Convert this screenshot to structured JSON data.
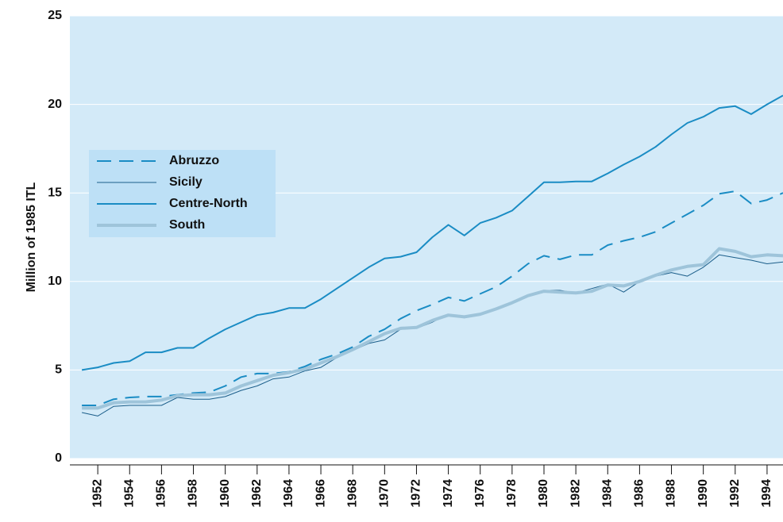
{
  "chart_data": {
    "type": "line",
    "y_label": "Million of 1985 ITL",
    "x": [
      1951,
      1952,
      1953,
      1954,
      1955,
      1956,
      1957,
      1958,
      1959,
      1960,
      1961,
      1962,
      1963,
      1964,
      1965,
      1966,
      1967,
      1968,
      1969,
      1970,
      1971,
      1972,
      1973,
      1974,
      1975,
      1976,
      1977,
      1978,
      1979,
      1980,
      1981,
      1982,
      1983,
      1984,
      1985,
      1986,
      1987,
      1988,
      1989,
      1990,
      1991,
      1992,
      1993,
      1994,
      1995
    ],
    "series": [
      {
        "name": "Abruzzo",
        "color": "#1a8cc4",
        "dash": true,
        "width": 2,
        "values": [
          3.0,
          3.0,
          3.35,
          3.45,
          3.5,
          3.5,
          3.6,
          3.7,
          3.75,
          4.1,
          4.6,
          4.8,
          4.8,
          4.9,
          5.2,
          5.6,
          5.9,
          6.3,
          6.9,
          7.3,
          7.9,
          8.35,
          8.7,
          9.1,
          8.9,
          9.3,
          9.7,
          10.3,
          11.0,
          11.45,
          11.25,
          11.5,
          11.5,
          12.05,
          12.3,
          12.5,
          12.8,
          13.3,
          13.8,
          14.3,
          14.95,
          15.1,
          14.4,
          14.6,
          15.0
        ]
      },
      {
        "name": "Sicily",
        "color": "#1b5e8a",
        "dash": false,
        "width": 1,
        "values": [
          2.6,
          2.4,
          2.95,
          3.0,
          3.0,
          3.0,
          3.45,
          3.35,
          3.35,
          3.5,
          3.85,
          4.1,
          4.5,
          4.6,
          4.95,
          5.15,
          5.7,
          6.1,
          6.5,
          6.7,
          7.3,
          7.35,
          7.7,
          8.15,
          7.95,
          8.1,
          8.4,
          8.8,
          9.2,
          9.5,
          9.5,
          9.35,
          9.6,
          9.85,
          9.4,
          10.0,
          10.3,
          10.5,
          10.3,
          10.8,
          11.5,
          11.35,
          11.2,
          11.0,
          11.1
        ]
      },
      {
        "name": "Centre-North",
        "color": "#1a8cc4",
        "dash": false,
        "width": 2,
        "values": [
          5.0,
          5.15,
          5.4,
          5.5,
          6.0,
          6.0,
          6.25,
          6.25,
          6.8,
          7.3,
          7.7,
          8.1,
          8.25,
          8.5,
          8.5,
          9.0,
          9.6,
          10.2,
          10.8,
          11.3,
          11.4,
          11.65,
          12.5,
          13.2,
          12.6,
          13.3,
          13.6,
          14.0,
          14.8,
          15.6,
          15.6,
          15.65,
          15.65,
          16.1,
          16.6,
          17.05,
          17.6,
          18.3,
          18.95,
          19.3,
          19.8,
          19.9,
          19.45,
          20.0,
          20.5
        ]
      },
      {
        "name": "South",
        "color": "#9ec4da",
        "dash": false,
        "width": 4,
        "values": [
          2.85,
          2.85,
          3.15,
          3.2,
          3.2,
          3.3,
          3.55,
          3.6,
          3.6,
          3.7,
          4.1,
          4.4,
          4.7,
          4.85,
          5.05,
          5.4,
          5.75,
          6.15,
          6.6,
          7.05,
          7.35,
          7.4,
          7.8,
          8.1,
          8.0,
          8.15,
          8.45,
          8.8,
          9.2,
          9.45,
          9.4,
          9.35,
          9.45,
          9.8,
          9.75,
          10.0,
          10.35,
          10.65,
          10.85,
          10.95,
          11.85,
          11.7,
          11.4,
          11.5,
          11.45
        ]
      }
    ],
    "xlim": [
      1950.25,
      1995
    ],
    "xticks": [
      1952,
      1954,
      1956,
      1958,
      1960,
      1962,
      1964,
      1966,
      1968,
      1970,
      1972,
      1974,
      1976,
      1978,
      1980,
      1982,
      1984,
      1986,
      1988,
      1990,
      1992,
      1994
    ],
    "ylim": [
      0,
      25
    ],
    "yticks": [
      0,
      5,
      10,
      15,
      20,
      25
    ],
    "grid": true,
    "legend": "center left",
    "background": "#d3eaf8"
  }
}
